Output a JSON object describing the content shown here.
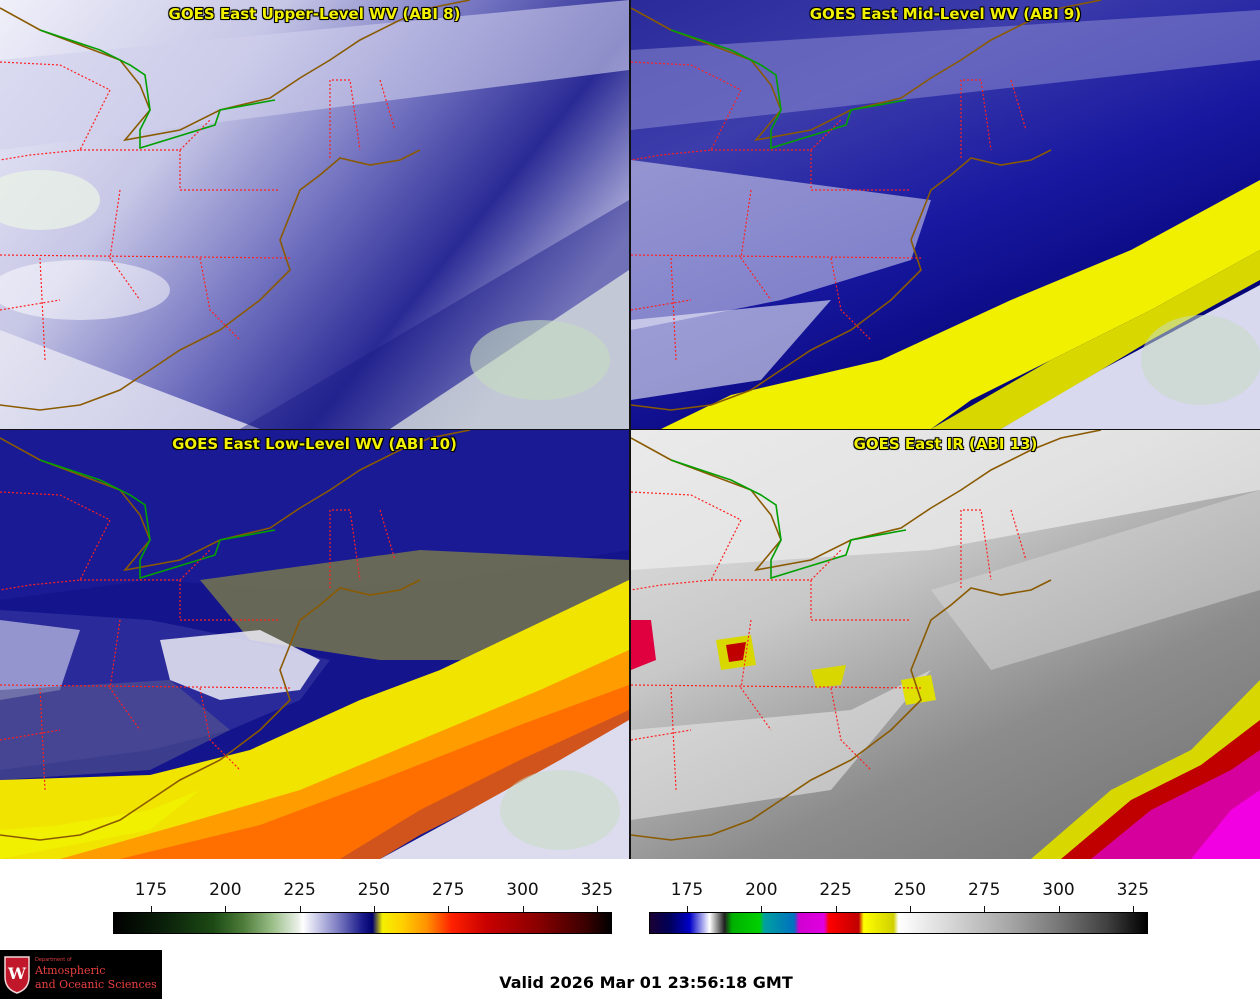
{
  "panels": [
    {
      "title": "GOES East Upper-Level WV (ABI 8)",
      "scheme": "wv-upper"
    },
    {
      "title": "GOES East Mid-Level WV (ABI 9)",
      "scheme": "wv-mid"
    },
    {
      "title": "GOES East Low-Level WV (ABI 10)",
      "scheme": "wv-low"
    },
    {
      "title": "GOES East IR (ABI 13)",
      "scheme": "ir"
    }
  ],
  "colorbars": {
    "wv": {
      "ticks": [
        "175",
        "200",
        "225",
        "250",
        "275",
        "300",
        "325"
      ]
    },
    "ir": {
      "ticks": [
        "175",
        "200",
        "225",
        "250",
        "275",
        "300",
        "325"
      ]
    }
  },
  "valid_time": "Valid 2026 Mar 01 23:56:18 GMT",
  "logo": {
    "small": "Department of",
    "line1": "Atmospheric",
    "line2": "and Oceanic Sciences",
    "badge_letter": "W"
  },
  "colors": {
    "title_text": "#f2f200",
    "state_borders": "#ff2020",
    "coastline": "#8a5a00",
    "us_canada_border": "#00a000"
  }
}
